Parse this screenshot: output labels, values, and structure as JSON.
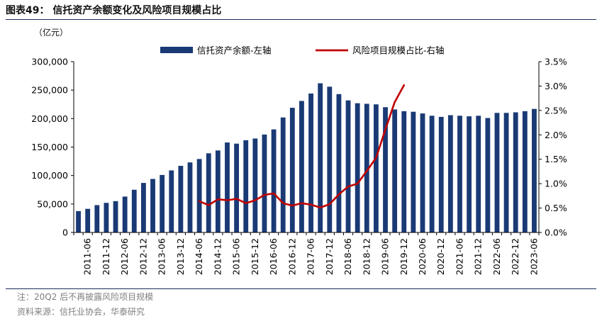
{
  "title": "图表49： 信托资产余额变化及风险项目规模占比",
  "unit_label": "（亿元）",
  "note": "注：20Q2 后不再披露风险项目规模",
  "source": "资料来源：信托业协会，华泰研究",
  "colors": {
    "bar": "#1a3a75",
    "line": "#c00000",
    "rule": "#1a2e5a"
  },
  "chart_data": {
    "type": "bar",
    "title": "",
    "legend_position": "top",
    "categories": [
      "2011-03",
      "2011-06",
      "2011-09",
      "2011-12",
      "2012-03",
      "2012-06",
      "2012-09",
      "2012-12",
      "2013-03",
      "2013-06",
      "2013-09",
      "2013-12",
      "2014-03",
      "2014-06",
      "2014-09",
      "2014-12",
      "2015-03",
      "2015-06",
      "2015-09",
      "2015-12",
      "2016-03",
      "2016-06",
      "2016-09",
      "2016-12",
      "2017-03",
      "2017-06",
      "2017-09",
      "2017-12",
      "2018-03",
      "2018-06",
      "2018-09",
      "2018-12",
      "2019-03",
      "2019-06",
      "2019-09",
      "2019-12",
      "2020-03",
      "2020-06",
      "2020-09",
      "2020-12",
      "2021-03",
      "2021-06",
      "2021-09",
      "2021-12",
      "2022-03",
      "2022-06",
      "2022-09",
      "2022-12",
      "2023-03",
      "2023-06"
    ],
    "tick_labels": [
      "2011-06",
      "2011-12",
      "2012-06",
      "2012-12",
      "2013-06",
      "2013-12",
      "2014-06",
      "2014-12",
      "2015-06",
      "2015-12",
      "2016-06",
      "2016-12",
      "2017-06",
      "2017-12",
      "2018-06",
      "2018-12",
      "2019-06",
      "2019-12",
      "2020-06",
      "2020-12",
      "2021-06",
      "2021-12",
      "2022-06",
      "2022-12",
      "2023-06"
    ],
    "y_left": {
      "min": 0,
      "max": 300000,
      "ticks": [
        "0",
        "50,000",
        "100,000",
        "150,000",
        "200,000",
        "250,000",
        "300,000"
      ]
    },
    "y_right": {
      "min": 0,
      "max": 3.5,
      "ticks": [
        "0.0%",
        "0.5%",
        "1.0%",
        "1.5%",
        "2.0%",
        "2.5%",
        "3.0%",
        "3.5%"
      ]
    },
    "series": [
      {
        "name": "信托资产余额-左轴",
        "axis": "left",
        "type": "bar",
        "values": [
          37500,
          41500,
          48000,
          52000,
          55000,
          63000,
          75000,
          87000,
          94000,
          101000,
          109000,
          117000,
          123000,
          129000,
          139000,
          144000,
          158000,
          156000,
          162000,
          165000,
          172000,
          181000,
          202000,
          219000,
          231000,
          244000,
          262000,
          256000,
          243000,
          232000,
          227000,
          226000,
          225000,
          220000,
          216000,
          213000,
          212000,
          209000,
          205000,
          203000,
          206000,
          205000,
          204000,
          205000,
          201000,
          210000,
          210000,
          211000,
          213000,
          217000
        ]
      },
      {
        "name": "风险项目规模占比-右轴",
        "axis": "right",
        "type": "line",
        "values": [
          null,
          null,
          null,
          null,
          null,
          null,
          null,
          null,
          null,
          null,
          null,
          null,
          null,
          0.64,
          0.56,
          0.68,
          0.66,
          0.69,
          0.6,
          0.66,
          0.77,
          0.8,
          0.6,
          0.55,
          0.6,
          0.57,
          0.51,
          0.58,
          0.78,
          0.94,
          1.0,
          1.26,
          1.53,
          2.11,
          2.67,
          3.02,
          null,
          null,
          null,
          null,
          null,
          null,
          null,
          null,
          null,
          null,
          null,
          null,
          null,
          null
        ]
      }
    ]
  }
}
